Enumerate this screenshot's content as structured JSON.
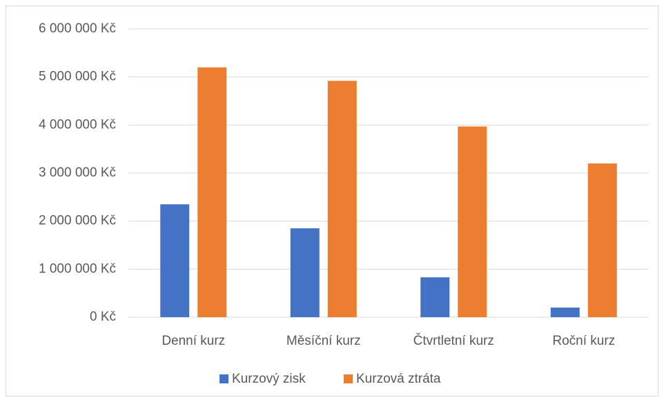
{
  "chart_data": {
    "type": "bar",
    "categories": [
      "Denní kurz",
      "Měsíční kurz",
      "Čtvrtletní kurz",
      "Roční kurz"
    ],
    "series": [
      {
        "name": "Kurzový zisk",
        "color": "#4472c4",
        "values": [
          2350000,
          1850000,
          830000,
          200000
        ]
      },
      {
        "name": "Kurzová ztráta",
        "color": "#ed7d31",
        "values": [
          5200000,
          4920000,
          3970000,
          3200000
        ]
      }
    ],
    "ylim": [
      0,
      6000000
    ],
    "yticks": [
      {
        "value": 0,
        "label": "0 Kč"
      },
      {
        "value": 1000000,
        "label": "1 000 000 Kč"
      },
      {
        "value": 2000000,
        "label": "2 000 000 Kč"
      },
      {
        "value": 3000000,
        "label": "3 000 000 Kč"
      },
      {
        "value": 4000000,
        "label": "4 000 000 Kč"
      },
      {
        "value": 5000000,
        "label": "5 000 000 Kč"
      },
      {
        "value": 6000000,
        "label": "6 000 000 Kč"
      }
    ],
    "grid": true,
    "legend": "bottom"
  }
}
